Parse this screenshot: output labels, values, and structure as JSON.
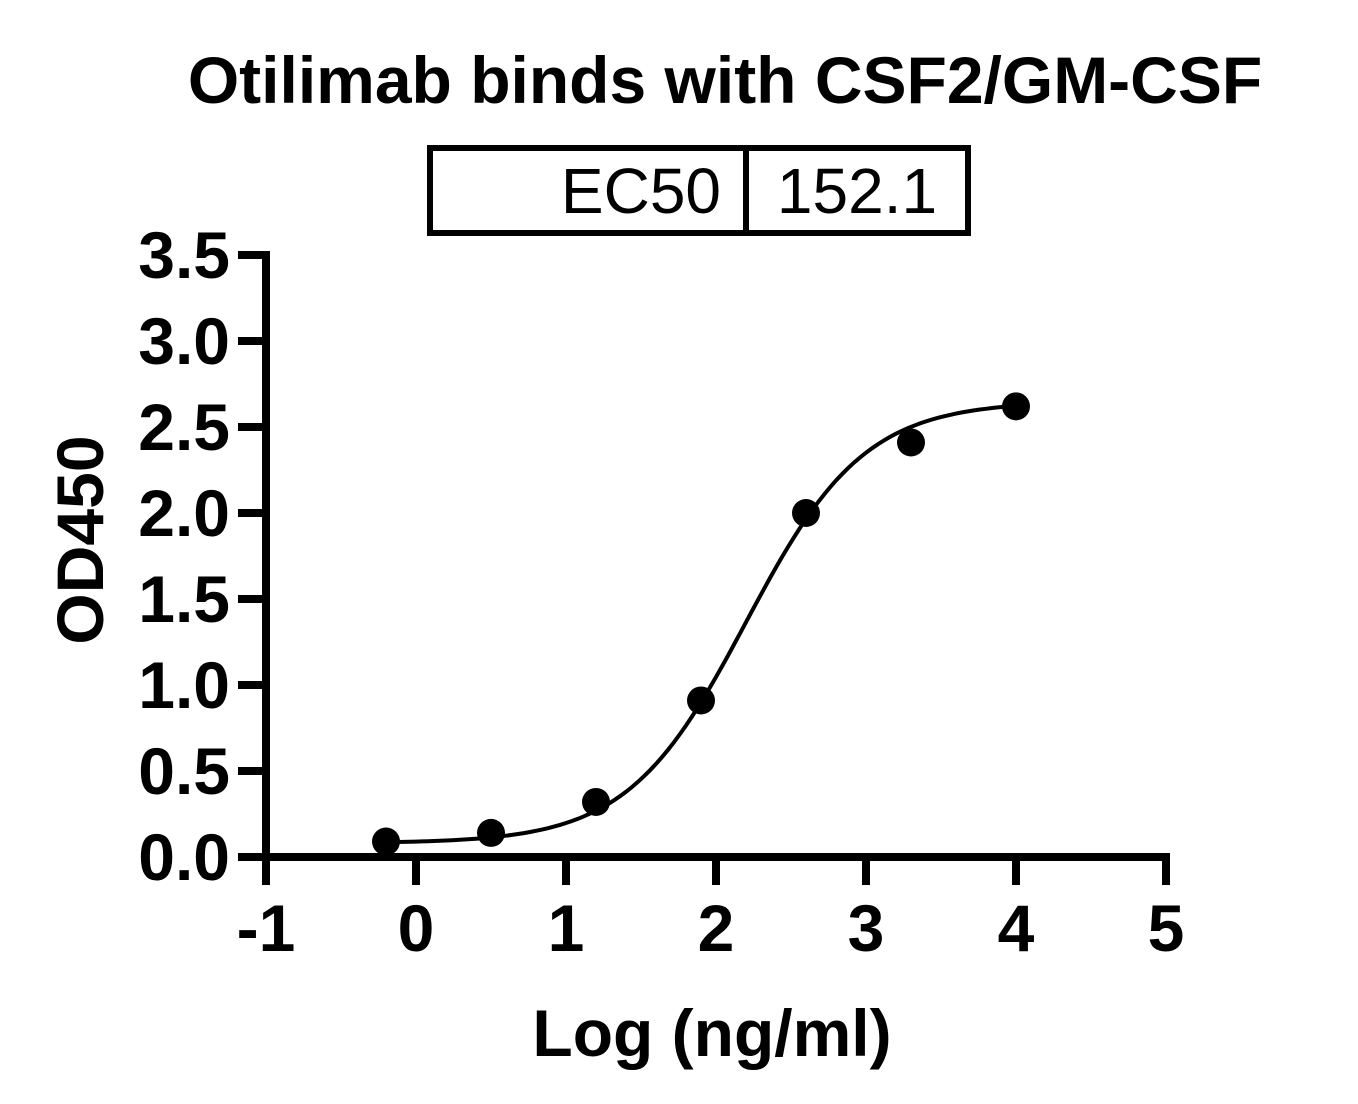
{
  "title": "Otilimab binds with CSF2/GM-CSF",
  "ec50_table": {
    "label": "EC50",
    "value": "152.1"
  },
  "colors": {
    "foreground": "#000000",
    "background": "#FFFFFF"
  },
  "chart_data": {
    "type": "scatter",
    "title": "Otilimab binds with CSF2/GM-CSF",
    "xlabel": "Log (ng/ml)",
    "ylabel": "OD450",
    "xlim": [
      -1,
      5
    ],
    "ylim": [
      0,
      3.5
    ],
    "x_tick_labels": [
      "-1",
      "0",
      "1",
      "2",
      "3",
      "4",
      "5"
    ],
    "y_tick_labels": [
      "0.0",
      "0.5",
      "1.0",
      "1.5",
      "2.0",
      "2.5",
      "3.0",
      "3.5"
    ],
    "grid": false,
    "legend": "none",
    "points": {
      "x": [
        -0.2,
        0.5,
        1.2,
        1.9,
        2.6,
        3.3,
        4.0
      ],
      "y": [
        0.09,
        0.14,
        0.32,
        0.91,
        2.0,
        2.41,
        2.62
      ]
    },
    "fit_curve": {
      "model": "four-parameter-logistic",
      "bottom": 0.08,
      "top": 2.65,
      "log_ec50": 2.2,
      "hill_slope": 1.1,
      "x_start": -0.2,
      "x_end": 4.0
    },
    "ec50": 152.1,
    "marker_color": "#000000",
    "line_color": "#000000",
    "axis_color": "#000000"
  }
}
